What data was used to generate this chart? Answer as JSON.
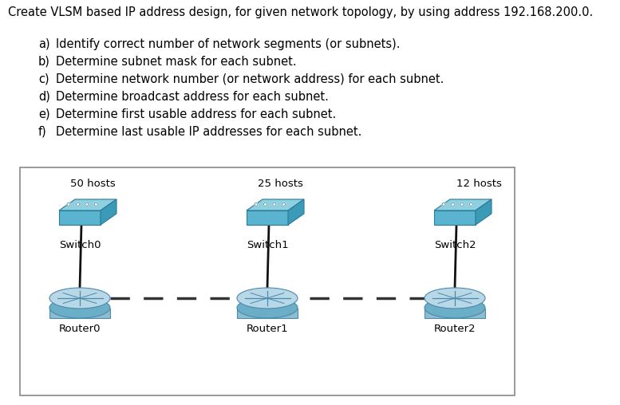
{
  "title": "Create VLSM based IP address design, for given network topology, by using address 192.168.200.0.",
  "items": [
    [
      "a)",
      "Identify correct number of network segments (or subnets)."
    ],
    [
      "b)",
      "Determine subnet mask for each subnet."
    ],
    [
      "c)",
      "Determine network number (or network address) for each subnet."
    ],
    [
      "d)",
      "Determine broadcast address for each subnet."
    ],
    [
      "e)",
      "Determine first usable address for each subnet."
    ],
    [
      "f)",
      "Determine last usable IP addresses for each subnet."
    ]
  ],
  "hosts_labels": [
    "50 hosts",
    "25 hosts",
    "12 hosts"
  ],
  "switch_labels": [
    "Switch0",
    "Switch1",
    "Switch2"
  ],
  "router_labels": [
    "Router0",
    "Router1",
    "Router2"
  ],
  "background": "#ffffff",
  "text_color": "#000000",
  "title_fontsize": 10.5,
  "item_fontsize": 10.5,
  "label_fontsize": 9.5,
  "hosts_fontsize": 9.5,
  "switch_top_color": "#8ecfe0",
  "switch_front_color": "#5ab4d0",
  "switch_side_color": "#3a9ab8",
  "switch_edge_color": "#2a7a98",
  "router_top_color": "#b8d8e8",
  "router_body_color": "#90bcd0",
  "router_bottom_color": "#6aaec8",
  "router_edge_color": "#4a8aaa",
  "line_color": "#111111",
  "dash_color": "#333333",
  "box_edge_color": "#888888"
}
